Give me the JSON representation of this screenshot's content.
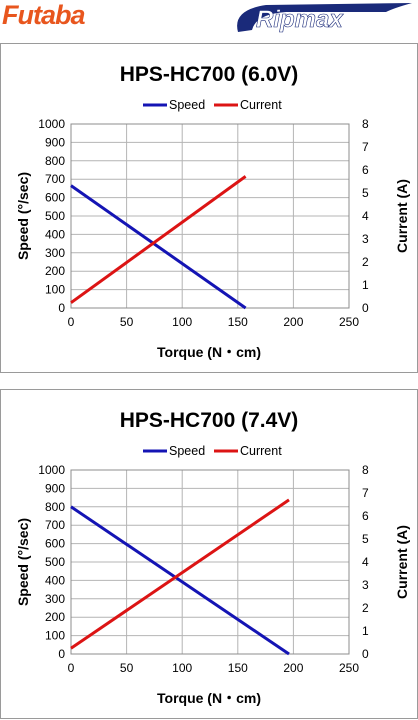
{
  "header": {
    "left_logo_text": "Futaba",
    "right_logo_text": "Ripmax",
    "left_logo_color": "#e8561e",
    "right_logo_color": "#1a2a7a"
  },
  "colors": {
    "speed": "#1414b4",
    "current": "#dc1414",
    "grid": "#b4b4b4"
  },
  "chart_data": [
    {
      "type": "line",
      "title": "HPS-HC700 (6.0V)",
      "xlabel": "Torque  (N・cm)",
      "ylabel": "Speed (°/sec)",
      "y2label": "Current (A)",
      "xlim": [
        0,
        250
      ],
      "ylim": [
        0,
        1000
      ],
      "y2lim": [
        0,
        8
      ],
      "xticks": [
        0,
        50,
        100,
        150,
        200,
        250
      ],
      "yticks": [
        0,
        100,
        200,
        300,
        400,
        500,
        600,
        700,
        800,
        900,
        1000
      ],
      "y2ticks": [
        0,
        1,
        2,
        3,
        4,
        5,
        6,
        7,
        8
      ],
      "legend": "top-center",
      "grid": true,
      "series": [
        {
          "name": "Speed",
          "axis": "left",
          "x": [
            0,
            157
          ],
          "values": [
            665,
            0
          ]
        },
        {
          "name": "Current",
          "axis": "right",
          "x": [
            0,
            157
          ],
          "values": [
            0.23,
            5.72
          ]
        }
      ]
    },
    {
      "type": "line",
      "title": "HPS-HC700 (7.4V)",
      "xlabel": "Torque  (N・cm)",
      "ylabel": "Speed (°/sec)",
      "y2label": "Current (A)",
      "xlim": [
        0,
        250
      ],
      "ylim": [
        0,
        1000
      ],
      "y2lim": [
        0,
        8
      ],
      "xticks": [
        0,
        50,
        100,
        150,
        200,
        250
      ],
      "yticks": [
        0,
        100,
        200,
        300,
        400,
        500,
        600,
        700,
        800,
        900,
        1000
      ],
      "y2ticks": [
        0,
        1,
        2,
        3,
        4,
        5,
        6,
        7,
        8
      ],
      "legend": "top-center",
      "grid": true,
      "series": [
        {
          "name": "Speed",
          "axis": "left",
          "x": [
            0,
            196
          ],
          "values": [
            800,
            0
          ]
        },
        {
          "name": "Current",
          "axis": "right",
          "x": [
            0,
            196
          ],
          "values": [
            0.25,
            6.7
          ]
        }
      ]
    }
  ]
}
